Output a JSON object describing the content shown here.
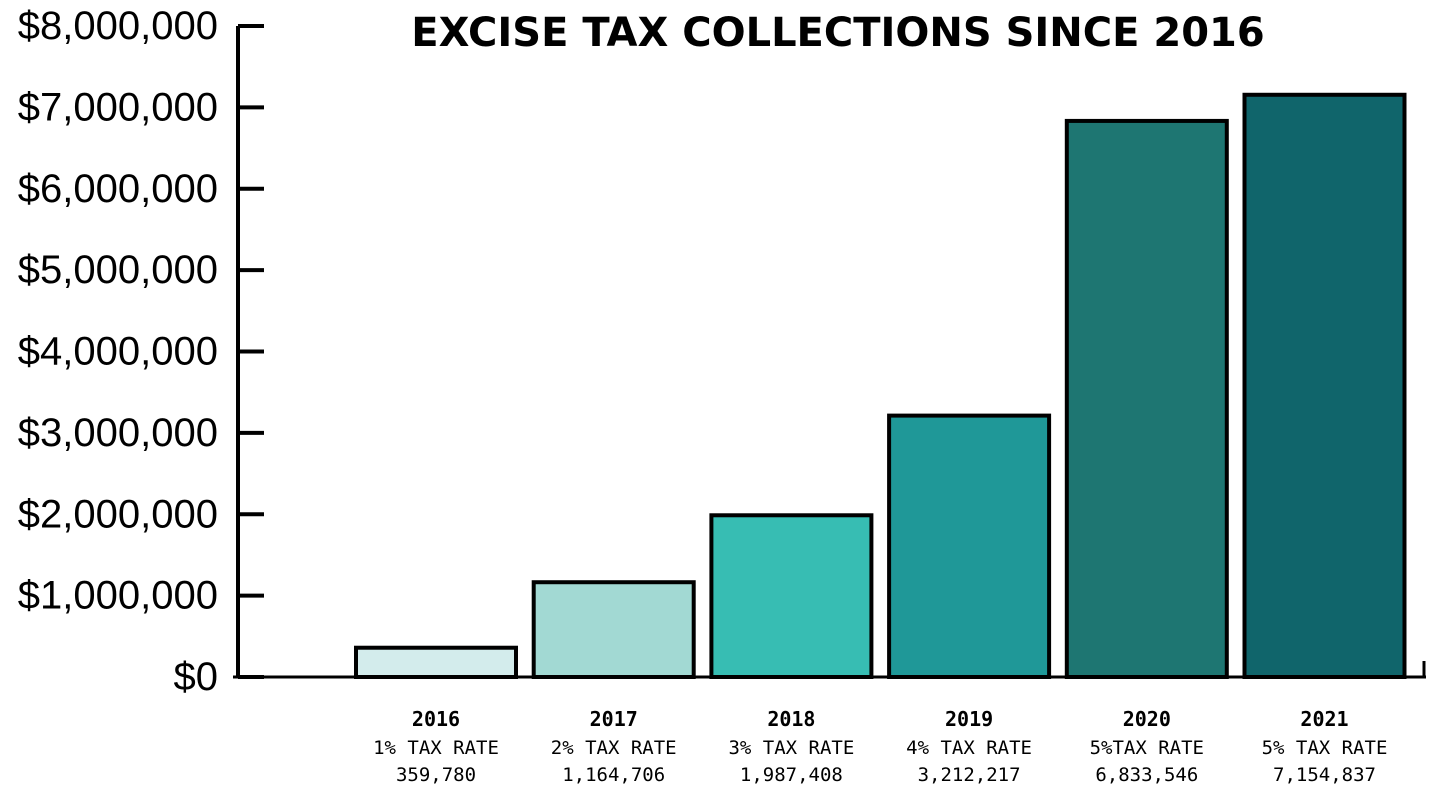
{
  "chart_data": {
    "type": "bar",
    "title": "EXCISE TAX COLLECTIONS SINCE 2016",
    "xlabel": "",
    "ylabel": "",
    "ylim": [
      0,
      8000000
    ],
    "yticks": [
      {
        "value": 0,
        "label": "$0"
      },
      {
        "value": 1000000,
        "label": "$1,000,000"
      },
      {
        "value": 2000000,
        "label": "$2,000,000"
      },
      {
        "value": 3000000,
        "label": "$3,000,000"
      },
      {
        "value": 4000000,
        "label": "$4,000,000"
      },
      {
        "value": 5000000,
        "label": "$5,000,000"
      },
      {
        "value": 6000000,
        "label": "$6,000,000"
      },
      {
        "value": 7000000,
        "label": "$7,000,000"
      },
      {
        "value": 8000000,
        "label": "$8,000,000"
      }
    ],
    "grid": false,
    "categories": [
      "2016",
      "2017",
      "2018",
      "2019",
      "2020",
      "2021"
    ],
    "rate_labels": [
      "1% TAX RATE",
      "2% TAX RATE",
      "3% TAX RATE",
      "4% TAX RATE",
      "5%TAX RATE",
      "5% TAX RATE"
    ],
    "value_labels": [
      "359,780",
      "1,164,706",
      "1,987,408",
      "3,212,217",
      "6,833,546",
      "7,154,837"
    ],
    "values": [
      359780,
      1164706,
      1987408,
      3212217,
      6833546,
      7154837
    ],
    "colors": [
      "#d3ecec",
      "#a2d9d3",
      "#37bdb3",
      "#1f9898",
      "#1e7672",
      "#10656b"
    ]
  }
}
